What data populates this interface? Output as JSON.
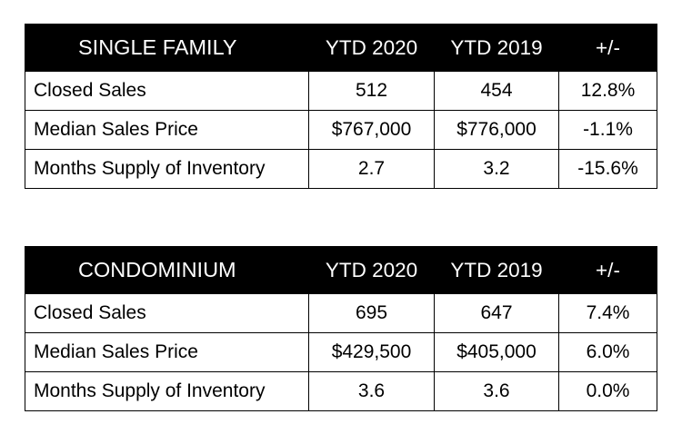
{
  "single_family": {
    "title": "SINGLE FAMILY",
    "columns": [
      "YTD 2020",
      "YTD 2019",
      "+/-"
    ],
    "rows": [
      {
        "label": "Closed Sales",
        "ytd2020": "512",
        "ytd2019": "454",
        "change": "12.8%"
      },
      {
        "label": "Median Sales Price",
        "ytd2020": "$767,000",
        "ytd2019": "$776,000",
        "change": "-1.1%"
      },
      {
        "label": "Months Supply of Inventory",
        "ytd2020": "2.7",
        "ytd2019": "3.2",
        "change": "-15.6%"
      }
    ]
  },
  "condominium": {
    "title": "CONDOMINIUM",
    "columns": [
      "YTD 2020",
      "YTD 2019",
      "+/-"
    ],
    "rows": [
      {
        "label": "Closed Sales",
        "ytd2020": "695",
        "ytd2019": "647",
        "change": "7.4%"
      },
      {
        "label": "Median Sales Price",
        "ytd2020": "$429,500",
        "ytd2019": "$405,000",
        "change": "6.0%"
      },
      {
        "label": "Months Supply of Inventory",
        "ytd2020": "3.6",
        "ytd2019": "3.6",
        "change": "0.0%"
      }
    ]
  }
}
